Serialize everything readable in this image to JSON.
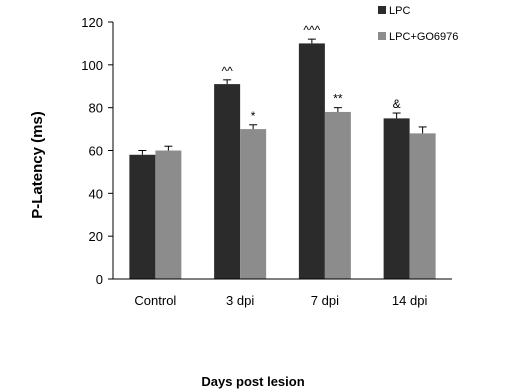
{
  "chart_data": {
    "type": "bar",
    "categories": [
      "Control",
      "3 dpi",
      "7 dpi",
      "14 dpi"
    ],
    "series": [
      {
        "name": "LPC",
        "color": "#2b2b2b",
        "values": [
          58,
          91,
          110,
          75
        ],
        "errors": [
          2,
          2,
          2,
          2.5
        ]
      },
      {
        "name": "LPC+GO6976",
        "color": "#8c8c8c",
        "values": [
          60,
          70,
          78,
          68
        ],
        "errors": [
          2,
          2,
          2,
          3
        ]
      }
    ],
    "annotations": [
      {
        "series": 0,
        "category": 1,
        "text": "^^"
      },
      {
        "series": 1,
        "category": 1,
        "text": "*"
      },
      {
        "series": 0,
        "category": 2,
        "text": "^^^"
      },
      {
        "series": 1,
        "category": 2,
        "text": "**"
      },
      {
        "series": 0,
        "category": 3,
        "text": "&"
      }
    ],
    "xlabel": "Days post lesion",
    "ylabel": "P-Latency (ms)",
    "ylim": [
      0,
      120
    ],
    "yticks": [
      0,
      20,
      40,
      60,
      80,
      100,
      120
    ],
    "grid": false,
    "legend_position": "top-right"
  }
}
